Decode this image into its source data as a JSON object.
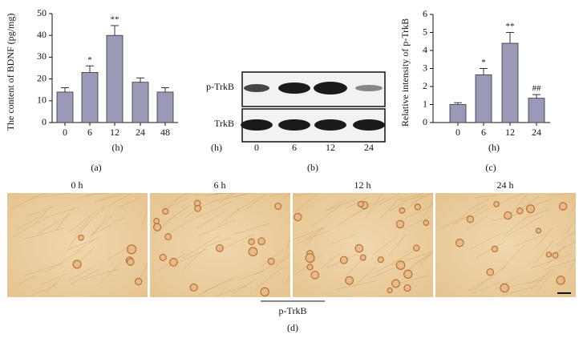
{
  "chart_data": [
    {
      "type": "bar",
      "ylabel": "The content of BDNF (pg/mg)",
      "xlabel": "(h)",
      "caption": "(a)",
      "categories": [
        "0",
        "6",
        "12",
        "24",
        "48"
      ],
      "values": [
        14,
        23,
        40,
        18.5,
        14
      ],
      "errors": [
        2,
        3,
        4.5,
        2,
        2
      ],
      "annotations": [
        null,
        "*",
        "**",
        null,
        null
      ],
      "color": "#9a9ab8",
      "ylim": [
        0,
        50
      ],
      "yticks": [
        0,
        10,
        20,
        30,
        40,
        50
      ]
    },
    {
      "type": "bar",
      "ylabel": "Relative intensity of p-TrkB",
      "xlabel": "(h)",
      "caption": "(c)",
      "categories": [
        "0",
        "6",
        "12",
        "24"
      ],
      "values": [
        1,
        2.65,
        4.4,
        1.35
      ],
      "errors": [
        0.1,
        0.35,
        0.6,
        0.2
      ],
      "annotations": [
        null,
        "*",
        "**",
        "##"
      ],
      "color": "#9a9ab8",
      "ylim": [
        0,
        6
      ],
      "yticks": [
        0,
        1,
        2,
        3,
        4,
        5,
        6
      ]
    }
  ],
  "blot": {
    "labels": [
      "p-TrkB",
      "TrkB"
    ],
    "xlabel": "(h)",
    "lanes": [
      "0",
      "6",
      "12",
      "24"
    ],
    "caption": "(b)"
  },
  "micrographs": {
    "panels": [
      "0 h",
      "6 h",
      "12 h",
      "24 h"
    ],
    "label": "p-TrkB",
    "caption": "(d)"
  }
}
